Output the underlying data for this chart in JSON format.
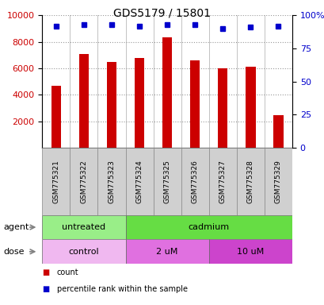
{
  "title": "GDS5179 / 15801",
  "samples": [
    "GSM775321",
    "GSM775322",
    "GSM775323",
    "GSM775324",
    "GSM775325",
    "GSM775326",
    "GSM775327",
    "GSM775328",
    "GSM775329"
  ],
  "counts": [
    4700,
    7100,
    6500,
    6750,
    8350,
    6600,
    6000,
    6150,
    2450
  ],
  "percentiles": [
    92,
    93,
    93,
    92,
    93,
    93,
    90,
    91,
    92
  ],
  "bar_color": "#cc0000",
  "dot_color": "#0000cc",
  "ylim_left": [
    0,
    10000
  ],
  "ylim_right": [
    0,
    100
  ],
  "yticks_left": [
    2000,
    4000,
    6000,
    8000,
    10000
  ],
  "yticks_right": [
    0,
    25,
    50,
    75,
    100
  ],
  "yticklabels_right": [
    "0",
    "25",
    "50",
    "75",
    "100%"
  ],
  "agent_labels": [
    {
      "text": "untreated",
      "start": 0,
      "end": 3,
      "color": "#99ee88"
    },
    {
      "text": "cadmium",
      "start": 3,
      "end": 9,
      "color": "#66dd44"
    }
  ],
  "dose_labels": [
    {
      "text": "control",
      "start": 0,
      "end": 3,
      "color": "#f0b8f0"
    },
    {
      "text": "2 uM",
      "start": 3,
      "end": 6,
      "color": "#e070e0"
    },
    {
      "text": "10 uM",
      "start": 6,
      "end": 9,
      "color": "#cc44cc"
    }
  ],
  "row_label_agent": "agent",
  "row_label_dose": "dose",
  "legend_count_color": "#cc0000",
  "legend_dot_color": "#0000cc",
  "legend_count_label": "count",
  "legend_dot_label": "percentile rank within the sample",
  "tick_label_color_left": "#cc0000",
  "tick_label_color_right": "#0000cc",
  "sample_box_color": "#d0d0d0",
  "sample_box_edge": "#888888"
}
